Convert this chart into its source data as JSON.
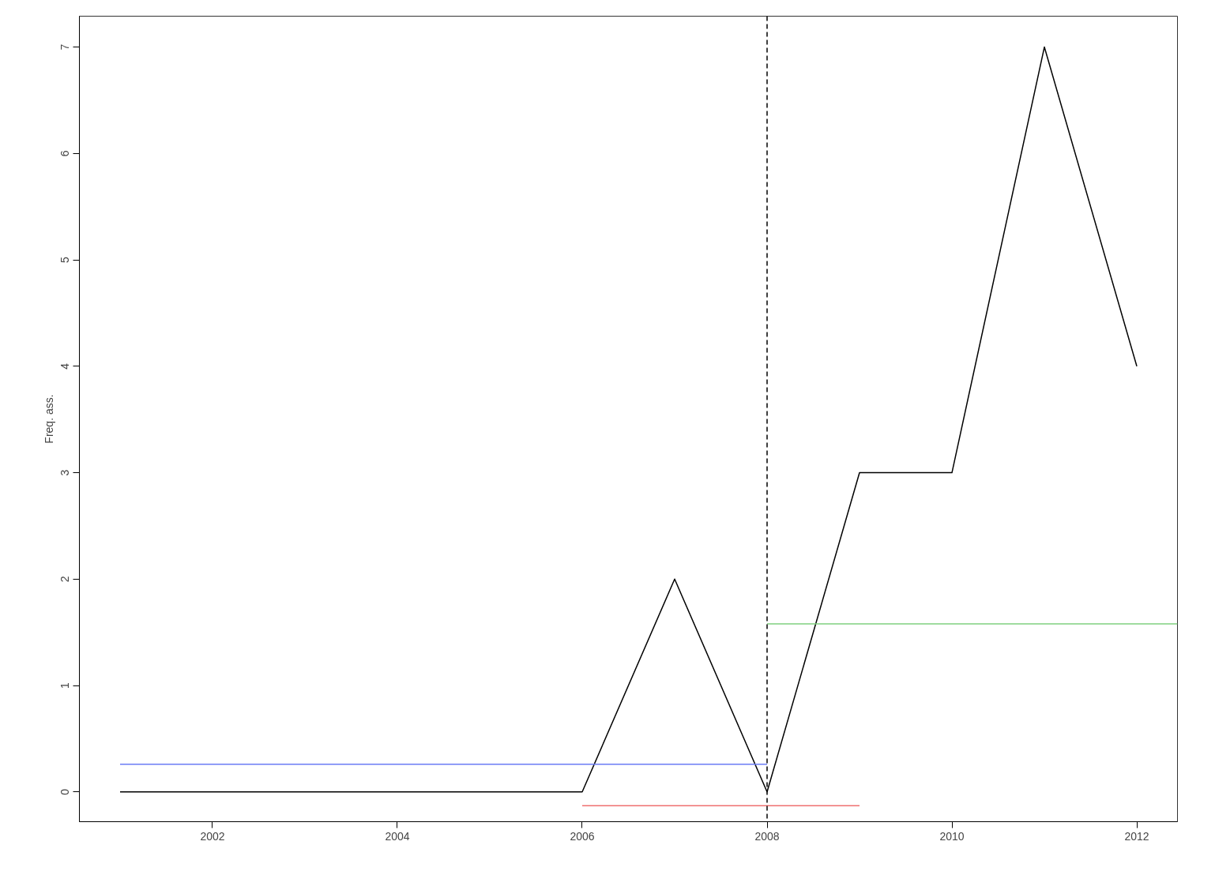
{
  "chart_data": {
    "type": "line",
    "ylabel": "Freq. ass.",
    "xlim": [
      2000.56,
      2012.44
    ],
    "ylim": [
      -0.28,
      7.29
    ],
    "xticks": [
      2002,
      2004,
      2006,
      2008,
      2010,
      2012
    ],
    "yticks": [
      0,
      1,
      2,
      3,
      4,
      5,
      6,
      7
    ],
    "grid": false,
    "series": [
      {
        "color": "#000000",
        "x": [
          2001,
          2002,
          2003,
          2004,
          2005,
          2006,
          2007,
          2008,
          2009,
          2010,
          2011,
          2012
        ],
        "values": [
          0,
          0,
          0,
          0,
          0,
          0,
          2,
          0,
          3,
          3,
          7,
          4
        ]
      },
      {
        "color": "#6b7cf5",
        "x": [
          2001,
          2008
        ],
        "values": [
          0.26,
          0.26
        ]
      },
      {
        "color": "#7fd07f",
        "x": [
          2008,
          2012.44
        ],
        "values": [
          1.58,
          1.58
        ]
      },
      {
        "color": "#f07070",
        "x": [
          2006,
          2009
        ],
        "values": [
          -0.13,
          -0.13
        ]
      }
    ],
    "ref_lines": [
      {
        "axis": "x",
        "value": 2008,
        "color": "#000000",
        "line_style": "dashed"
      }
    ]
  }
}
